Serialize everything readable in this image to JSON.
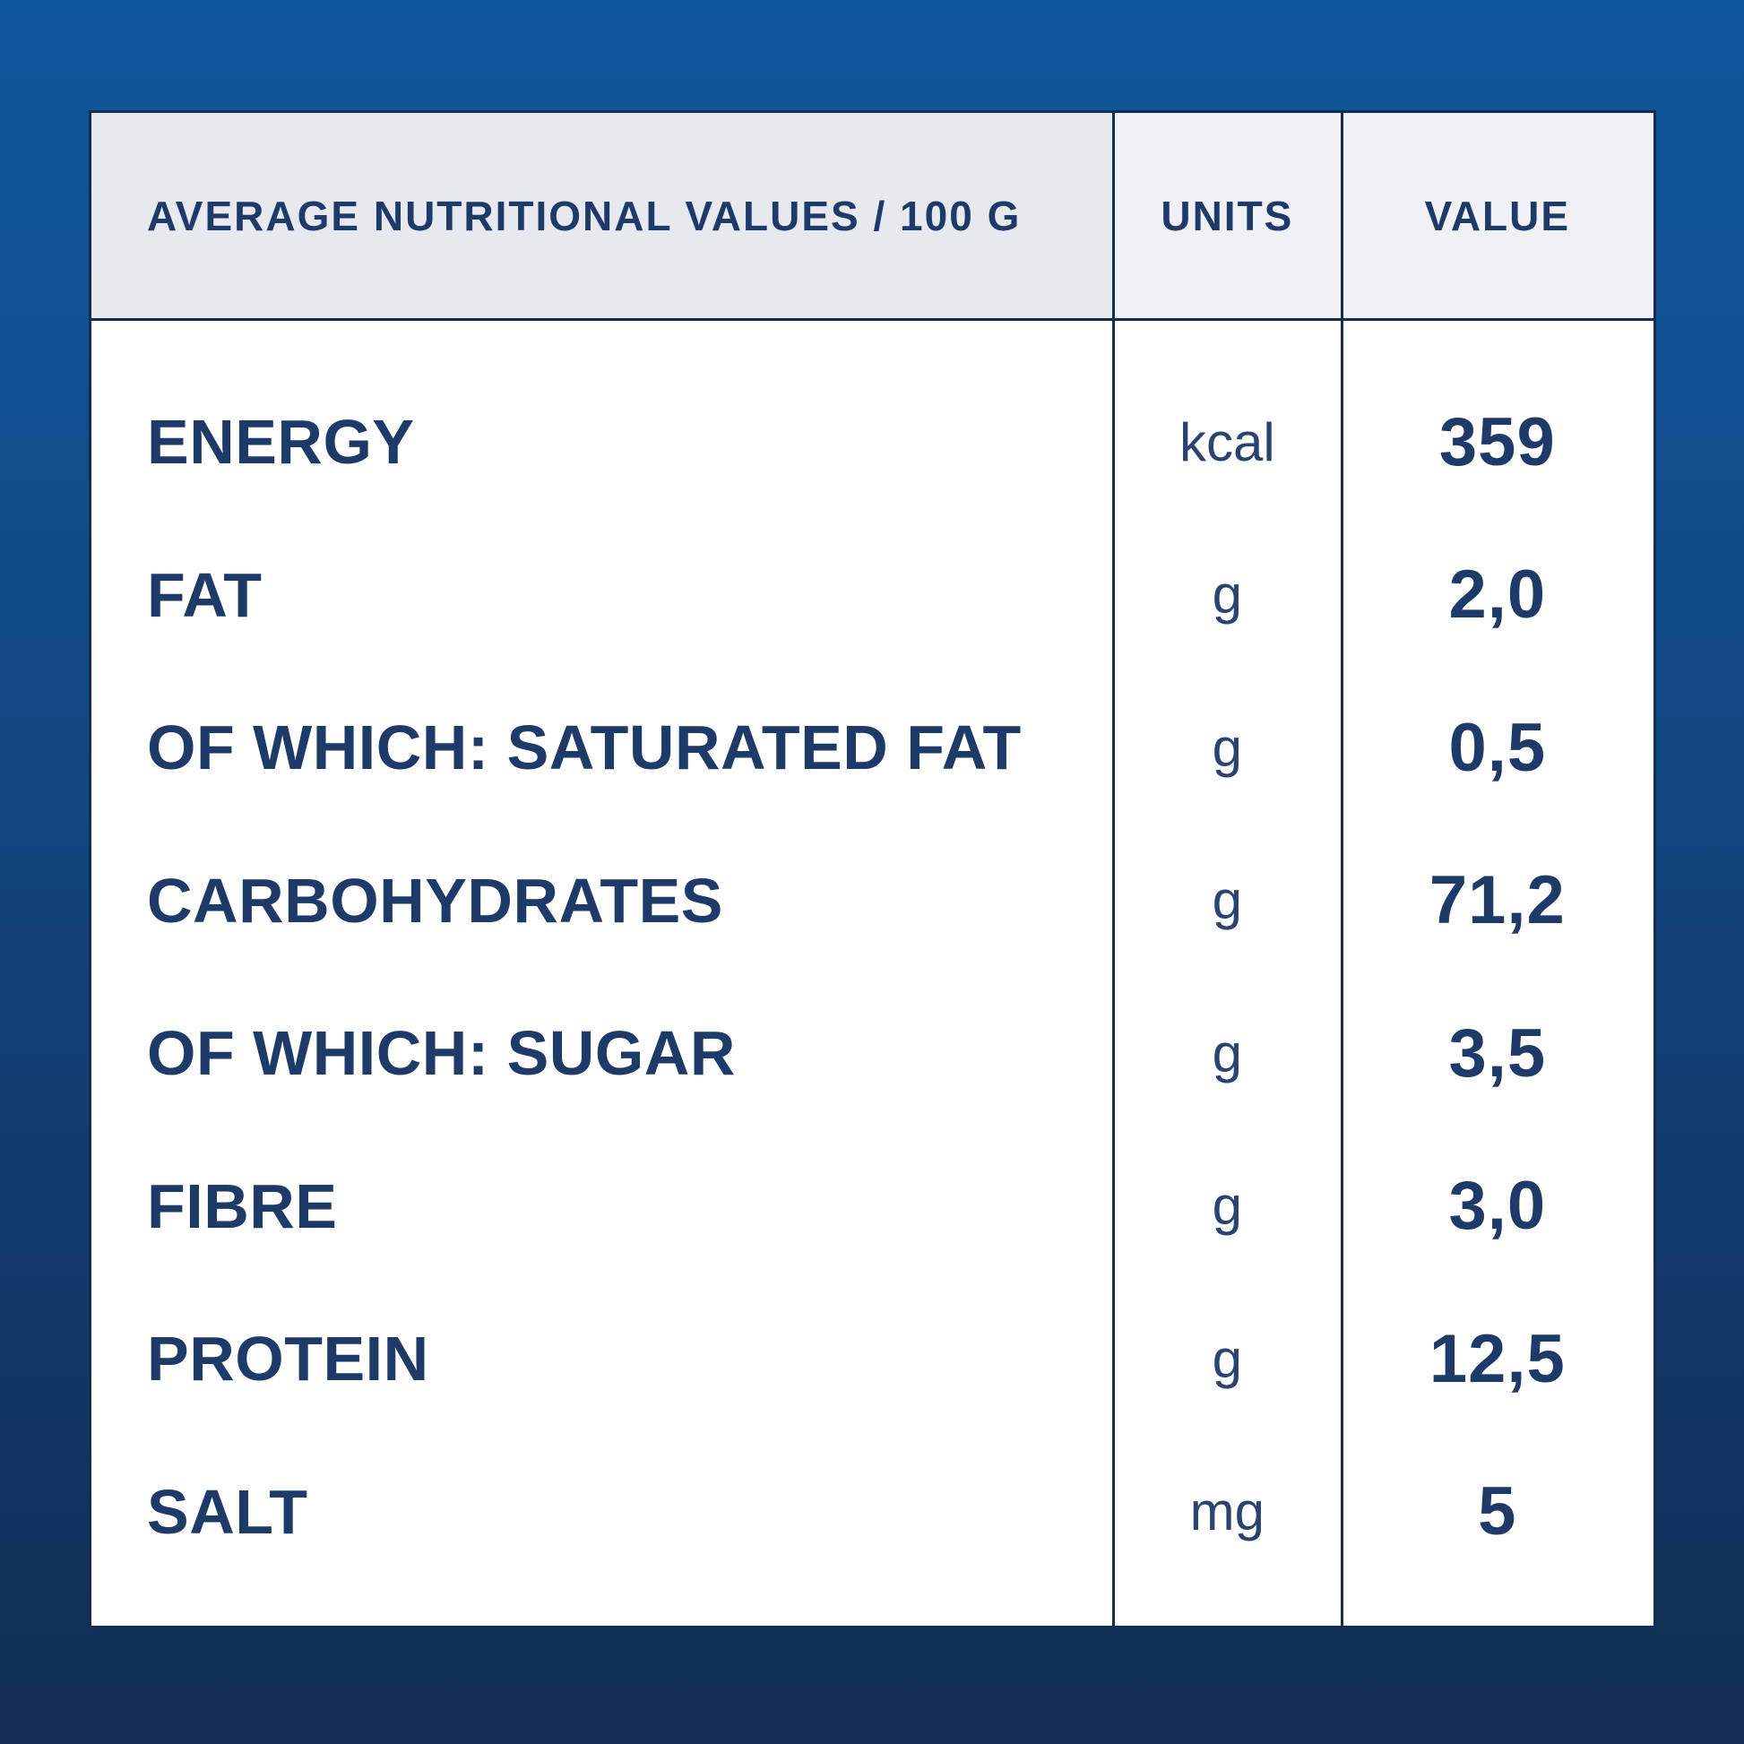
{
  "panel": {
    "header": {
      "category_label": "AVERAGE NUTRITIONAL VALUES / 100 G",
      "units_label": "UNITS",
      "value_label": "VALUE"
    },
    "rows": [
      {
        "label": "ENERGY",
        "unit": "kcal",
        "value": "359"
      },
      {
        "label": "FAT",
        "unit": "g",
        "value": "2,0"
      },
      {
        "label": "OF WHICH: SATURATED FAT",
        "unit": "g",
        "value": "0,5"
      },
      {
        "label": "CARBOHYDRATES",
        "unit": "g",
        "value": "71,2"
      },
      {
        "label": "OF WHICH: SUGAR",
        "unit": "g",
        "value": "3,5"
      },
      {
        "label": "FIBRE",
        "unit": "g",
        "value": "3,0"
      },
      {
        "label": "PROTEIN",
        "unit": "g",
        "value": "12,5"
      },
      {
        "label": "SALT",
        "unit": "mg",
        "value": "5"
      }
    ]
  },
  "chart_data": {
    "type": "table",
    "title": "AVERAGE NUTRITIONAL VALUES / 100 G",
    "columns": [
      "AVERAGE NUTRITIONAL VALUES / 100 G",
      "UNITS",
      "VALUE"
    ],
    "rows": [
      [
        "ENERGY",
        "kcal",
        "359"
      ],
      [
        "FAT",
        "g",
        "2,0"
      ],
      [
        "OF WHICH: SATURATED FAT",
        "g",
        "0,5"
      ],
      [
        "CARBOHYDRATES",
        "g",
        "71,2"
      ],
      [
        "OF WHICH: SUGAR",
        "g",
        "3,5"
      ],
      [
        "FIBRE",
        "g",
        "3,0"
      ],
      [
        "PROTEIN",
        "g",
        "12,5"
      ],
      [
        "SALT",
        "mg",
        "5"
      ]
    ]
  },
  "colors": {
    "background_top": "#0f579c",
    "background_mid": "#114a85",
    "background_bottom": "#112e53",
    "table_border": "#152c52",
    "header_cell_bg": "#e6e9ee",
    "header_cell_bg_light": "#eff1f5",
    "body_bg": "#ffffff",
    "text": "#1e3a69",
    "unit_text": "#2a4371"
  }
}
